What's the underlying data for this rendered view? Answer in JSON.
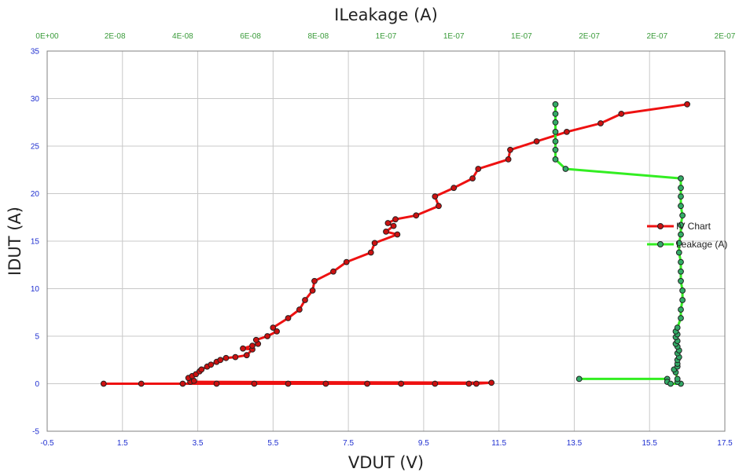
{
  "chart_data": {
    "type": "scatter",
    "title": "",
    "xlabel": "VDUT (V)",
    "ylabel": "IDUT (A)",
    "x2label": "ILeakage (A)",
    "xlim": [
      -0.5,
      17.5
    ],
    "ylim": [
      -5,
      35
    ],
    "x_ticks": [
      "-0.5",
      "1.5",
      "3.5",
      "5.5",
      "7.5",
      "9.5",
      "11.5",
      "13.5",
      "15.5",
      "17.5"
    ],
    "y_ticks": [
      "-5",
      "0",
      "5",
      "10",
      "15",
      "20",
      "25",
      "30",
      "35"
    ],
    "x2_ticks": [
      "0E+00",
      "2E-08",
      "4E-08",
      "6E-08",
      "8E-08",
      "1E-07",
      "1E-07",
      "1E-07",
      "2E-07",
      "2E-07",
      "2E-07"
    ],
    "grid": true,
    "legend_position": "right",
    "colors": {
      "iv": "#ee1111",
      "leakage": "#33ee22",
      "iv_marker": "#cc1111",
      "leakage_marker": "#33aa66",
      "tick_primary": "#1f2fd0",
      "tick_secondary": "#3a9b3a"
    },
    "series": [
      {
        "name": "IV Chart",
        "axis": "primary",
        "points": [
          [
            1.0,
            0.0
          ],
          [
            2.0,
            0.0
          ],
          [
            3.1,
            0.0
          ],
          [
            4.0,
            0.0
          ],
          [
            5.0,
            0.0
          ],
          [
            5.9,
            0.0
          ],
          [
            6.9,
            0.0
          ],
          [
            8.0,
            0.0
          ],
          [
            8.9,
            0.0
          ],
          [
            9.8,
            0.0
          ],
          [
            10.7,
            0.0
          ],
          [
            10.9,
            0.0
          ],
          [
            11.3,
            0.1
          ],
          [
            3.3,
            0.2
          ],
          [
            3.4,
            0.3
          ],
          [
            3.25,
            0.6
          ],
          [
            3.35,
            0.8
          ],
          [
            3.45,
            1.0
          ],
          [
            3.55,
            1.3
          ],
          [
            3.6,
            1.5
          ],
          [
            3.75,
            1.8
          ],
          [
            3.85,
            2.0
          ],
          [
            4.0,
            2.3
          ],
          [
            4.1,
            2.5
          ],
          [
            4.25,
            2.7
          ],
          [
            4.5,
            2.8
          ],
          [
            4.8,
            3.0
          ],
          [
            4.95,
            3.6
          ],
          [
            4.7,
            3.7
          ],
          [
            4.95,
            4.0
          ],
          [
            5.1,
            4.2
          ],
          [
            5.05,
            4.6
          ],
          [
            5.35,
            5.0
          ],
          [
            5.6,
            5.5
          ],
          [
            5.5,
            5.9
          ],
          [
            5.9,
            6.9
          ],
          [
            6.2,
            7.8
          ],
          [
            6.35,
            8.8
          ],
          [
            6.55,
            9.8
          ],
          [
            6.6,
            10.8
          ],
          [
            7.1,
            11.8
          ],
          [
            7.45,
            12.8
          ],
          [
            8.1,
            13.8
          ],
          [
            8.2,
            14.8
          ],
          [
            8.8,
            15.7
          ],
          [
            8.5,
            16.0
          ],
          [
            8.7,
            16.6
          ],
          [
            8.55,
            16.9
          ],
          [
            8.75,
            17.3
          ],
          [
            9.3,
            17.7
          ],
          [
            9.9,
            18.7
          ],
          [
            9.8,
            19.7
          ],
          [
            10.3,
            20.6
          ],
          [
            10.8,
            21.6
          ],
          [
            10.95,
            22.6
          ],
          [
            11.75,
            23.6
          ],
          [
            11.8,
            24.6
          ],
          [
            12.5,
            25.5
          ],
          [
            13.3,
            26.5
          ],
          [
            14.2,
            27.4
          ],
          [
            14.75,
            28.4
          ],
          [
            16.5,
            29.4
          ]
        ]
      },
      {
        "name": "Leakage (A)",
        "axis": "secondary",
        "points": [
          [
            1.57e-07,
            0.5
          ],
          [
            1.83e-07,
            0.5
          ],
          [
            1.83e-07,
            0.2
          ],
          [
            1.84e-07,
            0.0
          ],
          [
            1.87e-07,
            0.0
          ],
          [
            1.86e-07,
            0.2
          ],
          [
            1.86e-07,
            0.5
          ],
          [
            1.855e-07,
            1.2
          ],
          [
            1.85e-07,
            1.5
          ],
          [
            1.86e-07,
            1.8
          ],
          [
            1.86e-07,
            2.1
          ],
          [
            1.86e-07,
            2.5
          ],
          [
            1.865e-07,
            2.8
          ],
          [
            1.86e-07,
            3.2
          ],
          [
            1.865e-07,
            3.5
          ],
          [
            1.86e-07,
            3.9
          ],
          [
            1.855e-07,
            4.2
          ],
          [
            1.86e-07,
            4.5
          ],
          [
            1.855e-07,
            4.9
          ],
          [
            1.86e-07,
            5.2
          ],
          [
            1.855e-07,
            5.5
          ],
          [
            1.86e-07,
            5.9
          ],
          [
            1.87e-07,
            6.9
          ],
          [
            1.87e-07,
            7.8
          ],
          [
            1.875e-07,
            8.8
          ],
          [
            1.875e-07,
            9.8
          ],
          [
            1.87e-07,
            10.8
          ],
          [
            1.87e-07,
            11.8
          ],
          [
            1.87e-07,
            12.8
          ],
          [
            1.865e-07,
            13.8
          ],
          [
            1.865e-07,
            14.8
          ],
          [
            1.87e-07,
            15.7
          ],
          [
            1.87e-07,
            16.7
          ],
          [
            1.875e-07,
            17.7
          ],
          [
            1.87e-07,
            18.7
          ],
          [
            1.87e-07,
            19.7
          ],
          [
            1.87e-07,
            20.6
          ],
          [
            1.87e-07,
            21.6
          ],
          [
            1.53e-07,
            22.6
          ],
          [
            1.5e-07,
            23.6
          ],
          [
            1.5e-07,
            24.6
          ],
          [
            1.5e-07,
            25.5
          ],
          [
            1.5e-07,
            26.5
          ],
          [
            1.5e-07,
            27.5
          ],
          [
            1.5e-07,
            28.4
          ],
          [
            1.5e-07,
            29.4
          ]
        ]
      }
    ],
    "secondary_xlim": [
      0,
      2e-07
    ]
  }
}
